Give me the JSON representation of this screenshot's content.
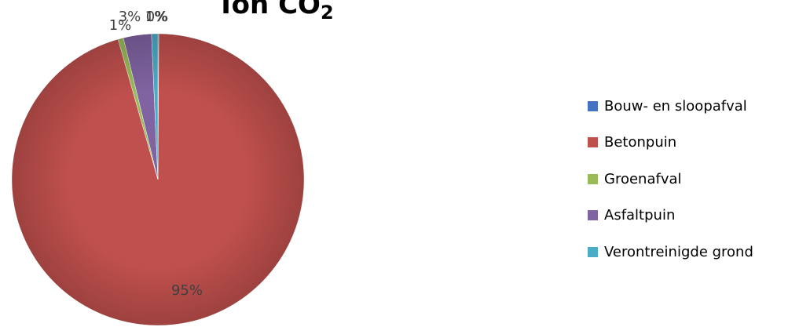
{
  "chart_data": {
    "type": "pie",
    "title": "Ton CO",
    "title_subscript": "2",
    "categories": [
      "Bouw- en sloopafval",
      "Betonpuin",
      "Groenafval",
      "Asfaltpuin",
      "Verontreinigde grond"
    ],
    "values": [
      0.1,
      95.5,
      0.6,
      3.1,
      0.7
    ],
    "data_labels": [
      "0%",
      "95%",
      "1%",
      "3%",
      "1%"
    ],
    "colors": [
      "#4472c4",
      "#c0504d",
      "#9bbb59",
      "#8064a2",
      "#4bacc6"
    ],
    "legend_position": "right"
  }
}
